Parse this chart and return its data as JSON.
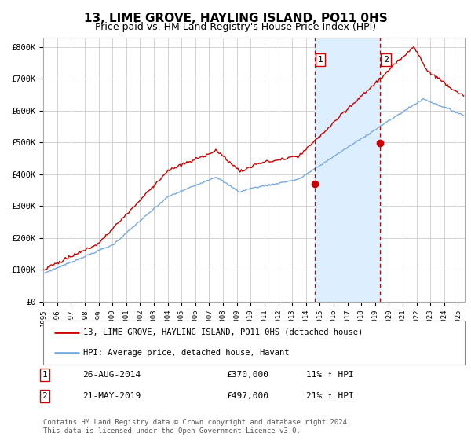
{
  "title": "13, LIME GROVE, HAYLING ISLAND, PO11 0HS",
  "subtitle": "Price paid vs. HM Land Registry's House Price Index (HPI)",
  "title_fontsize": 11,
  "subtitle_fontsize": 9,
  "ylabel_ticks": [
    "£0",
    "£100K",
    "£200K",
    "£300K",
    "£400K",
    "£500K",
    "£600K",
    "£700K",
    "£800K"
  ],
  "ytick_values": [
    0,
    100000,
    200000,
    300000,
    400000,
    500000,
    600000,
    700000,
    800000
  ],
  "ylim": [
    0,
    830000
  ],
  "xlim_start": 1995.0,
  "xlim_end": 2025.5,
  "transaction1_date": 2014.65,
  "transaction1_price": 370000,
  "transaction1_label": "1",
  "transaction2_date": 2019.38,
  "transaction2_price": 497000,
  "transaction2_label": "2",
  "shaded_region_start": 2014.65,
  "shaded_region_end": 2019.38,
  "hpi_line_color": "#7aaadd",
  "price_line_color": "#cc0000",
  "marker_color": "#cc0000",
  "dashed_line_color": "#cc0000",
  "shaded_color": "#ddeeff",
  "grid_color": "#cccccc",
  "background_color": "#ffffff",
  "legend_label1": "13, LIME GROVE, HAYLING ISLAND, PO11 0HS (detached house)",
  "legend_label2": "HPI: Average price, detached house, Havant",
  "footer_text": "Contains HM Land Registry data © Crown copyright and database right 2024.\nThis data is licensed under the Open Government Licence v3.0.",
  "table_row1": [
    "1",
    "26-AUG-2014",
    "£370,000",
    "11% ↑ HPI"
  ],
  "table_row2": [
    "2",
    "21-MAY-2019",
    "£497,000",
    "21% ↑ HPI"
  ]
}
